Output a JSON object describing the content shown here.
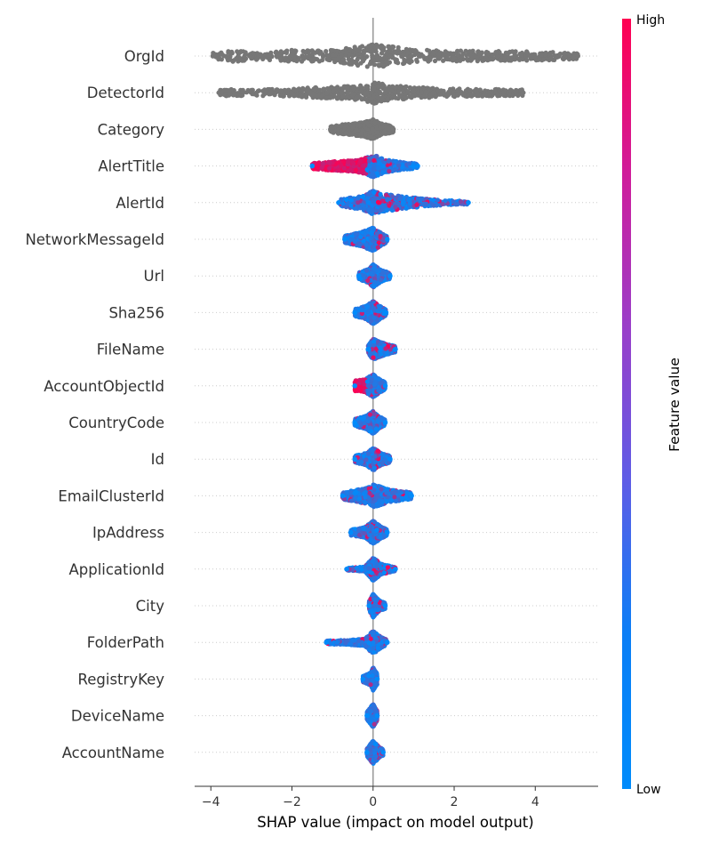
{
  "chart_data": {
    "type": "scatter",
    "subtype": "shap-beeswarm",
    "xlabel": "SHAP value (impact on model output)",
    "ylabel": "",
    "xlim": [
      -4.4,
      5.55
    ],
    "xticks": [
      -4,
      -2,
      0,
      2,
      4
    ],
    "xtick_labels": [
      "−4",
      "−2",
      "0",
      "2",
      "4"
    ],
    "grid": "dotted horizontal row guides",
    "colorbar": {
      "title": "Feature value",
      "high_label": "High",
      "low_label": "Low",
      "low_color": "#008bfb",
      "high_color": "#ff0051"
    },
    "features": [
      {
        "name": "OrgId",
        "color_mode": "gray",
        "min": -3.95,
        "max": 5.05,
        "density": [
          [
            -3.95,
            0.3
          ],
          [
            -3.4,
            0.55
          ],
          [
            -3.0,
            0.3
          ],
          [
            -2.5,
            0.35
          ],
          [
            -2.0,
            0.55
          ],
          [
            -1.5,
            0.5
          ],
          [
            -1.0,
            0.5
          ],
          [
            -0.5,
            0.75
          ],
          [
            -0.2,
            0.9
          ],
          [
            0,
            1.0
          ],
          [
            0.3,
            0.9
          ],
          [
            0.8,
            0.65
          ],
          [
            1.5,
            0.5
          ],
          [
            2.5,
            0.45
          ],
          [
            3.5,
            0.4
          ],
          [
            4.5,
            0.35
          ],
          [
            5.05,
            0.25
          ]
        ]
      },
      {
        "name": "DetectorId",
        "color_mode": "gray",
        "min": -3.8,
        "max": 3.7,
        "density": [
          [
            -3.8,
            0.25
          ],
          [
            -3.5,
            0.3
          ],
          [
            -3.0,
            0.25
          ],
          [
            -2.5,
            0.3
          ],
          [
            -2.0,
            0.35
          ],
          [
            -1.5,
            0.45
          ],
          [
            -1.0,
            0.5
          ],
          [
            -0.5,
            0.6
          ],
          [
            -0.1,
            0.8
          ],
          [
            0,
            1.0
          ],
          [
            0.3,
            0.7
          ],
          [
            1.0,
            0.5
          ],
          [
            2.0,
            0.35
          ],
          [
            3.0,
            0.3
          ],
          [
            3.7,
            0.25
          ]
        ]
      },
      {
        "name": "Category",
        "color_mode": "gray",
        "min": -1.05,
        "max": 0.5,
        "density": [
          [
            -1.05,
            0.25
          ],
          [
            -0.8,
            0.4
          ],
          [
            -0.5,
            0.5
          ],
          [
            -0.2,
            0.65
          ],
          [
            0,
            0.85
          ],
          [
            0.2,
            0.5
          ],
          [
            0.5,
            0.25
          ]
        ]
      },
      {
        "name": "AlertTitle",
        "color_mode": "mixed",
        "min": -1.5,
        "max": 1.1,
        "bias": -0.85,
        "density": [
          [
            -1.5,
            0.25
          ],
          [
            -1.0,
            0.4
          ],
          [
            -0.4,
            0.5
          ],
          [
            -0.1,
            0.8
          ],
          [
            0,
            1.0
          ],
          [
            0.3,
            0.55
          ],
          [
            0.8,
            0.3
          ],
          [
            1.1,
            0.2
          ]
        ]
      },
      {
        "name": "AlertId",
        "color_mode": "mixed",
        "min": -0.85,
        "max": 2.35,
        "bias": 0.1,
        "density": [
          [
            -0.85,
            0.25
          ],
          [
            -0.3,
            0.6
          ],
          [
            0,
            1.0
          ],
          [
            0.3,
            0.75
          ],
          [
            0.8,
            0.5
          ],
          [
            1.4,
            0.3
          ],
          [
            2.1,
            0.15
          ],
          [
            2.35,
            0.15
          ]
        ]
      },
      {
        "name": "NetworkMessageId",
        "color_mode": "mixed",
        "min": -0.7,
        "max": 0.35,
        "bias": 0.2,
        "density": [
          [
            -0.7,
            0.3
          ],
          [
            -0.3,
            0.6
          ],
          [
            0,
            1.0
          ],
          [
            0.2,
            0.55
          ],
          [
            0.35,
            0.25
          ]
        ]
      },
      {
        "name": "Url",
        "color_mode": "mixed",
        "min": -0.35,
        "max": 0.42,
        "bias": 0.0,
        "density": [
          [
            -0.35,
            0.3
          ],
          [
            -0.1,
            0.6
          ],
          [
            0,
            1.0
          ],
          [
            0.2,
            0.5
          ],
          [
            0.42,
            0.25
          ]
        ]
      },
      {
        "name": "Sha256",
        "color_mode": "mixed",
        "min": -0.45,
        "max": 0.32,
        "bias": 0.1,
        "density": [
          [
            -0.45,
            0.3
          ],
          [
            -0.15,
            0.6
          ],
          [
            0,
            1.0
          ],
          [
            0.2,
            0.5
          ],
          [
            0.32,
            0.25
          ]
        ]
      },
      {
        "name": "FileName",
        "color_mode": "mixed",
        "min": -0.12,
        "max": 0.55,
        "bias": 0.15,
        "density": [
          [
            -0.12,
            0.3
          ],
          [
            0,
            0.9
          ],
          [
            0.2,
            0.6
          ],
          [
            0.4,
            0.4
          ],
          [
            0.55,
            0.25
          ]
        ]
      },
      {
        "name": "AccountObjectId",
        "color_mode": "mixed",
        "min": -0.45,
        "max": 0.3,
        "bias": -0.9,
        "density": [
          [
            -0.45,
            0.45
          ],
          [
            -0.2,
            0.55
          ],
          [
            0,
            1.0
          ],
          [
            0.15,
            0.6
          ],
          [
            0.3,
            0.3
          ]
        ]
      },
      {
        "name": "CountryCode",
        "color_mode": "mixed",
        "min": -0.45,
        "max": 0.3,
        "bias": 0.0,
        "density": [
          [
            -0.45,
            0.3
          ],
          [
            -0.15,
            0.6
          ],
          [
            0,
            1.0
          ],
          [
            0.15,
            0.5
          ],
          [
            0.3,
            0.25
          ]
        ]
      },
      {
        "name": "Id",
        "color_mode": "mixed",
        "min": -0.45,
        "max": 0.42,
        "bias": 0.2,
        "density": [
          [
            -0.45,
            0.3
          ],
          [
            -0.15,
            0.55
          ],
          [
            0,
            1.0
          ],
          [
            0.2,
            0.5
          ],
          [
            0.42,
            0.3
          ]
        ]
      },
      {
        "name": "EmailClusterId",
        "color_mode": "mixed",
        "min": -0.75,
        "max": 0.95,
        "bias": 0.0,
        "density": [
          [
            -0.75,
            0.3
          ],
          [
            -0.35,
            0.55
          ],
          [
            -0.05,
            0.8
          ],
          [
            0,
            1.0
          ],
          [
            0.4,
            0.55
          ],
          [
            0.75,
            0.4
          ],
          [
            0.95,
            0.25
          ]
        ]
      },
      {
        "name": "IpAddress",
        "color_mode": "mixed",
        "min": -0.55,
        "max": 0.35,
        "bias": 0.0,
        "density": [
          [
            -0.55,
            0.25
          ],
          [
            -0.2,
            0.45
          ],
          [
            0,
            1.0
          ],
          [
            0.2,
            0.5
          ],
          [
            0.35,
            0.25
          ]
        ]
      },
      {
        "name": "ApplicationId",
        "color_mode": "mixed",
        "min": -0.65,
        "max": 0.55,
        "bias": 0.1,
        "density": [
          [
            -0.65,
            0.1
          ],
          [
            -0.2,
            0.2
          ],
          [
            0,
            1.0
          ],
          [
            0.2,
            0.45
          ],
          [
            0.55,
            0.15
          ]
        ]
      },
      {
        "name": "City",
        "color_mode": "mixed",
        "min": -0.1,
        "max": 0.3,
        "bias": 0.1,
        "density": [
          [
            -0.1,
            0.35
          ],
          [
            0,
            1.0
          ],
          [
            0.15,
            0.45
          ],
          [
            0.3,
            0.25
          ]
        ]
      },
      {
        "name": "FolderPath",
        "color_mode": "mixed",
        "min": -1.15,
        "max": 0.35,
        "bias": 0.0,
        "density": [
          [
            -1.15,
            0.15
          ],
          [
            -0.6,
            0.2
          ],
          [
            -0.2,
            0.3
          ],
          [
            0,
            1.0
          ],
          [
            0.2,
            0.45
          ],
          [
            0.35,
            0.2
          ]
        ]
      },
      {
        "name": "RegistryKey",
        "color_mode": "mixed",
        "min": -0.25,
        "max": 0.1,
        "bias": 0.0,
        "density": [
          [
            -0.25,
            0.25
          ],
          [
            -0.05,
            0.55
          ],
          [
            0,
            1.0
          ],
          [
            0.1,
            0.45
          ]
        ]
      },
      {
        "name": "DeviceName",
        "color_mode": "mixed",
        "min": -0.15,
        "max": 0.1,
        "bias": 0.3,
        "density": [
          [
            -0.15,
            0.3
          ],
          [
            0,
            1.0
          ],
          [
            0.1,
            0.4
          ]
        ]
      },
      {
        "name": "AccountName",
        "color_mode": "mixed",
        "min": -0.15,
        "max": 0.25,
        "bias": 0.2,
        "density": [
          [
            -0.15,
            0.3
          ],
          [
            0,
            1.0
          ],
          [
            0.15,
            0.45
          ],
          [
            0.25,
            0.25
          ]
        ]
      }
    ]
  }
}
